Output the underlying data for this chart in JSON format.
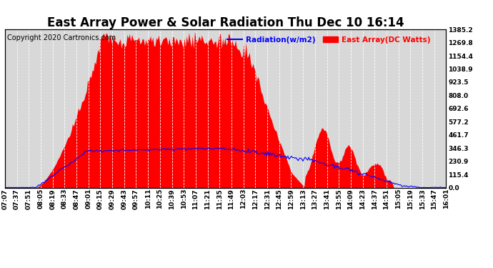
{
  "title": "East Array Power & Solar Radiation Thu Dec 10 16:14",
  "copyright": "Copyright 2020 Cartronics.com",
  "legend_radiation": "Radiation(w/m2)",
  "legend_east_array": "East Array(DC Watts)",
  "legend_radiation_color": "blue",
  "legend_east_array_color": "red",
  "y_right_ticks": [
    0.0,
    115.4,
    230.9,
    346.3,
    461.7,
    577.2,
    692.6,
    808.0,
    923.5,
    1038.9,
    1154.4,
    1269.8,
    1385.2
  ],
  "ymax": 1385.2,
  "ymin": 0.0,
  "background_color": "#ffffff",
  "plot_bg_color": "#d8d8d8",
  "grid_color": "#ffffff",
  "title_fontsize": 12,
  "copyright_fontsize": 7,
  "tick_fontsize": 6.5,
  "x_tick_labels": [
    "07:07",
    "07:37",
    "07:51",
    "08:05",
    "08:19",
    "08:33",
    "08:47",
    "09:01",
    "09:15",
    "09:29",
    "09:43",
    "09:57",
    "10:11",
    "10:25",
    "10:39",
    "10:53",
    "11:07",
    "11:21",
    "11:35",
    "11:49",
    "12:03",
    "12:17",
    "12:31",
    "12:45",
    "12:59",
    "13:13",
    "13:27",
    "13:41",
    "13:55",
    "14:09",
    "14:23",
    "14:37",
    "14:51",
    "15:05",
    "15:19",
    "15:33",
    "15:47",
    "16:01"
  ]
}
